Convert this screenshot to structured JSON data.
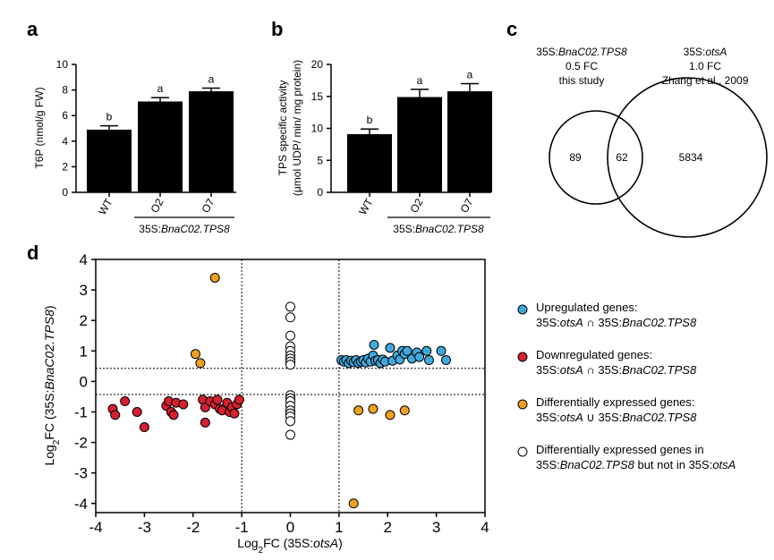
{
  "chart_data": [
    {
      "panel": "a",
      "type": "bar",
      "ylabel": "T6P (nmol/g FW)",
      "ylim": [
        0,
        10
      ],
      "yticks": [
        "0",
        "2",
        "4",
        "6",
        "8",
        "10"
      ],
      "categories": [
        "WT",
        "O2",
        "O7"
      ],
      "values": [
        4.9,
        7.1,
        7.9
      ],
      "errors": [
        0.3,
        0.3,
        0.25
      ],
      "sig": [
        "b",
        "a",
        "a"
      ],
      "group_label_prefix": "35S:",
      "group_label_gene": "BnaC02.TPS8"
    },
    {
      "panel": "b",
      "type": "bar",
      "ylabel_line1": "TPS specific activity",
      "ylabel_line2": "(μmol UDP/ min/ mg protein)",
      "ylim": [
        0,
        20
      ],
      "yticks": [
        "0",
        "5",
        "10",
        "15",
        "20"
      ],
      "categories": [
        "WT",
        "O2",
        "O7"
      ],
      "values": [
        9.1,
        14.9,
        15.8
      ],
      "errors": [
        0.8,
        1.2,
        1.2
      ],
      "sig": [
        "b",
        "a",
        "a"
      ],
      "group_label_prefix": "35S:",
      "group_label_gene": "BnaC02.TPS8"
    },
    {
      "panel": "c",
      "type": "venn",
      "set1": {
        "line1_prefix": "35S:",
        "line1_gene": "BnaC02.TPS8",
        "line2": "0.5 FC",
        "line3": "this study"
      },
      "set2": {
        "line1_prefix": "35S:",
        "line1_gene": "otsA",
        "line2": "1.0 FC",
        "line3": "Zhang et al., 2009"
      },
      "only1": "89",
      "both": "62",
      "only2": "5834"
    },
    {
      "panel": "d",
      "type": "scatter",
      "xlabel_prefix": "Log",
      "xlabel_sub": "2",
      "xlabel_fc": "FC (35S:",
      "xlabel_gene": "otsA",
      "xlabel_end": ")",
      "ylabel_prefix": "Log",
      "ylabel_sub": "2",
      "ylabel_fc": "FC (35S:",
      "ylabel_gene": "BnaC02.TPS8",
      "ylabel_end": ")",
      "xlim": [
        -4,
        4
      ],
      "ylim": [
        -4.3,
        4
      ],
      "xticks": [
        "-4",
        "-3",
        "-2",
        "-1",
        "0",
        "1",
        "2",
        "3",
        "4"
      ],
      "yticks": [
        "-4",
        "-3",
        "-2",
        "-1",
        "0",
        "1",
        "2",
        "3",
        "4"
      ],
      "vlines": [
        -1,
        1
      ],
      "hlines": [
        0.43,
        -0.43
      ],
      "series": [
        {
          "name": "Upregulated genes",
          "color": "#3fa9dd",
          "points": [
            [
              1.05,
              0.7
            ],
            [
              1.1,
              0.65
            ],
            [
              1.15,
              0.7
            ],
            [
              1.2,
              0.6
            ],
            [
              1.25,
              0.68
            ],
            [
              1.3,
              0.63
            ],
            [
              1.35,
              0.7
            ],
            [
              1.4,
              0.6
            ],
            [
              1.45,
              0.65
            ],
            [
              1.5,
              0.7
            ],
            [
              1.55,
              0.62
            ],
            [
              1.6,
              0.75
            ],
            [
              1.65,
              0.65
            ],
            [
              1.7,
              0.85
            ],
            [
              1.72,
              1.2
            ],
            [
              1.75,
              0.68
            ],
            [
              1.8,
              0.7
            ],
            [
              1.85,
              0.6
            ],
            [
              1.9,
              0.72
            ],
            [
              1.95,
              0.65
            ],
            [
              2.05,
              1.1
            ],
            [
              2.1,
              0.68
            ],
            [
              2.2,
              0.85
            ],
            [
              2.25,
              0.72
            ],
            [
              2.3,
              1.0
            ],
            [
              2.35,
              0.9
            ],
            [
              2.4,
              1.0
            ],
            [
              2.5,
              0.75
            ],
            [
              2.6,
              0.95
            ],
            [
              2.65,
              0.8
            ],
            [
              2.8,
              1.0
            ],
            [
              2.85,
              0.7
            ],
            [
              3.1,
              1.0
            ],
            [
              3.2,
              0.7
            ]
          ]
        },
        {
          "name": "Downregulated genes",
          "color": "#d5202e",
          "points": [
            [
              -3.65,
              -0.9
            ],
            [
              -3.6,
              -1.1
            ],
            [
              -3.4,
              -0.65
            ],
            [
              -3.15,
              -1.0
            ],
            [
              -3.0,
              -1.5
            ],
            [
              -2.55,
              -0.8
            ],
            [
              -2.5,
              -0.65
            ],
            [
              -2.45,
              -1.0
            ],
            [
              -2.4,
              -1.1
            ],
            [
              -2.35,
              -0.7
            ],
            [
              -2.2,
              -0.75
            ],
            [
              -1.8,
              -0.6
            ],
            [
              -1.75,
              -0.85
            ],
            [
              -1.75,
              -1.35
            ],
            [
              -1.65,
              -0.65
            ],
            [
              -1.55,
              -0.75
            ],
            [
              -1.5,
              -0.6
            ],
            [
              -1.45,
              -0.9
            ],
            [
              -1.4,
              -0.95
            ],
            [
              -1.3,
              -0.7
            ],
            [
              -1.25,
              -1.0
            ],
            [
              -1.2,
              -0.85
            ],
            [
              -1.15,
              -1.05
            ],
            [
              -1.1,
              -0.75
            ],
            [
              -1.05,
              -0.6
            ]
          ]
        },
        {
          "name": "Differentially expressed genes",
          "color": "#f1a01f",
          "points": [
            [
              -1.95,
              0.9
            ],
            [
              -1.85,
              0.6
            ],
            [
              -1.55,
              3.4
            ],
            [
              1.3,
              -4.0
            ],
            [
              1.4,
              -0.95
            ],
            [
              1.7,
              -0.9
            ],
            [
              2.05,
              -1.1
            ],
            [
              2.35,
              -0.95
            ]
          ]
        },
        {
          "name": "Differentially expressed genes in 35S:BnaC02.TPS8 but not in 35S:otsA",
          "color": "#ffffff",
          "points": [
            [
              0,
              2.45
            ],
            [
              0,
              2.1
            ],
            [
              0,
              1.5
            ],
            [
              0,
              1.15
            ],
            [
              0,
              1.0
            ],
            [
              0,
              0.85
            ],
            [
              0,
              0.75
            ],
            [
              0,
              0.65
            ],
            [
              0,
              0.55
            ],
            [
              0,
              -0.45
            ],
            [
              0,
              -0.55
            ],
            [
              0,
              -0.65
            ],
            [
              0,
              -0.8
            ],
            [
              0,
              -0.95
            ],
            [
              0,
              -1.05
            ],
            [
              0,
              -1.15
            ],
            [
              0,
              -1.3
            ],
            [
              0,
              -1.75
            ]
          ]
        }
      ],
      "legend": [
        {
          "line1": "Upregulated genes:",
          "l2a": "35S:",
          "l2b": "otsA",
          "l2c": " ∩ 35S:",
          "l2d": "BnaC02.TPS8"
        },
        {
          "line1": "Downregulated genes:",
          "l2a": "35S:",
          "l2b": "otsA",
          "l2c": " ∩ 35S:",
          "l2d": "BnaC02.TPS8"
        },
        {
          "line1": "Differentially expressed genes:",
          "l2a": "35S:",
          "l2b": "otsA",
          "l2c": " ∪ 35S:",
          "l2d": "BnaC02.TPS8"
        },
        {
          "line1": "Differentially expressed genes in",
          "l2a": "35S:",
          "l2b": "BnaC02.TPS8",
          "l2c": " but not in 35S:",
          "l2d": "otsA"
        }
      ]
    }
  ],
  "panel_labels": [
    "a",
    "b",
    "c",
    "d"
  ]
}
